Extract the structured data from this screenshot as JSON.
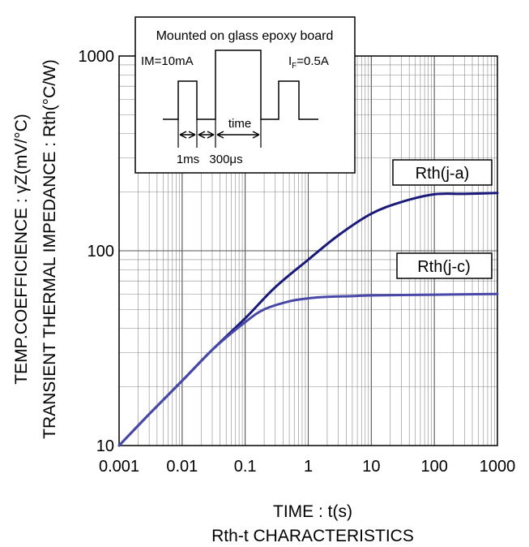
{
  "chart_data": {
    "type": "line",
    "title": "Rth-t CHARACTERISTICS",
    "xlabel": "TIME : t(s)",
    "ylabel_upper": "TEMP.COEFFICIENCE : γZ(mV/°C)",
    "ylabel_lower": "TRANSIENT THERMAL IMPEDANCE : Rth(°C/W)",
    "x_scale": "log",
    "y_scale": "log",
    "xlim": [
      0.001,
      1000
    ],
    "ylim": [
      10,
      1000
    ],
    "grid": true,
    "x_ticks": [
      "0.001",
      "0.01",
      "0.1",
      "1",
      "10",
      "100",
      "1000"
    ],
    "y_ticks": [
      "10",
      "100",
      "1000"
    ],
    "line_color": "#1a1a7a",
    "series": [
      {
        "name": "Rth(j-a)",
        "x": [
          0.001,
          0.003,
          0.01,
          0.03,
          0.1,
          0.3,
          1,
          3,
          10,
          30,
          100,
          300,
          1000
        ],
        "y": [
          10,
          14.5,
          21.5,
          31,
          45,
          65,
          90,
          120,
          155,
          178,
          195,
          196,
          198
        ]
      },
      {
        "name": "Rth(j-c)",
        "x": [
          0.001,
          0.003,
          0.01,
          0.03,
          0.1,
          0.2,
          0.5,
          1,
          2,
          5,
          10,
          100,
          1000
        ],
        "y": [
          10,
          14.5,
          21.5,
          31,
          43,
          50,
          55,
          57,
          58,
          58.5,
          59,
          59.5,
          60
        ]
      }
    ],
    "inset": {
      "title": "Mounted on glass epoxy board",
      "label_im": "IM=10mA",
      "label_if_main": "I",
      "label_if_sub": "F",
      "label_if_value": "=0.5A",
      "label_time": "time",
      "label_1ms": "1ms",
      "label_300us": "300μs"
    }
  }
}
